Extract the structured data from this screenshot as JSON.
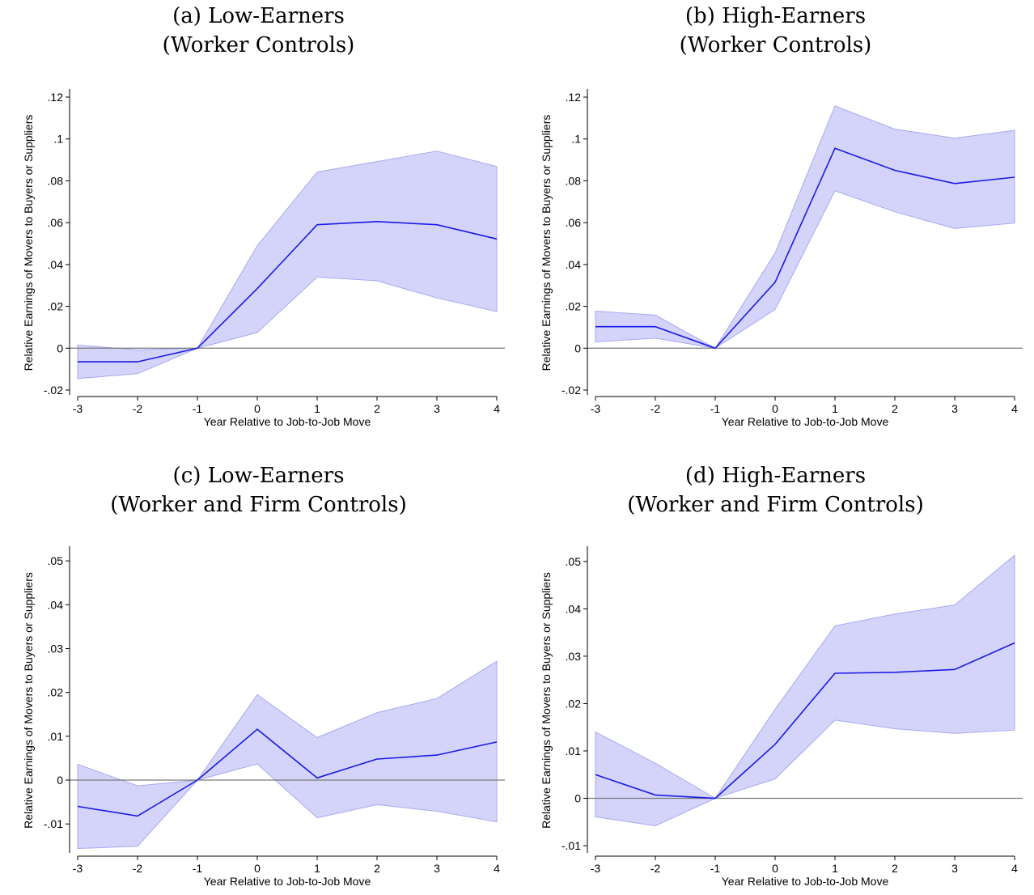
{
  "panels": [
    {
      "title_line1": "(a) Low-Earners",
      "title_line2": "(Worker Controls)"
    },
    {
      "title_line1": "(b) High-Earners",
      "title_line2": "(Worker Controls)"
    },
    {
      "title_line1": "(c) Low-Earners",
      "title_line2": "(Worker and Firm Controls)"
    },
    {
      "title_line1": "(d) High-Earners",
      "title_line2": "(Worker and Firm Controls)"
    }
  ],
  "colors": {
    "line": "#1a1ae6",
    "band": "#d4d4fb",
    "band_edge": "#a8a8f0",
    "zero_line": "#7a7a7a"
  },
  "chart_data": [
    {
      "type": "line",
      "title": "(a) Low-Earners (Worker Controls)",
      "xlabel": "Year Relative to Job-to-Job Move",
      "ylabel": "Relative Earnings of Movers to Buyers or Suppliers",
      "x": [
        -3,
        -2,
        -1,
        0,
        1,
        2,
        3,
        4
      ],
      "xlim": [
        -3,
        4
      ],
      "ylim": [
        -0.02,
        0.12
      ],
      "yticks": [
        -0.02,
        0,
        0.02,
        0.04,
        0.06,
        0.08,
        0.1,
        0.12
      ],
      "ytick_labels": [
        "-.02",
        "0",
        ".02",
        ".04",
        ".06",
        ".08",
        ".1",
        ".12"
      ],
      "series": [
        {
          "values": [
            -0.0065,
            -0.0065,
            0,
            0.0285,
            0.059,
            0.0605,
            0.059,
            0.0522
          ]
        }
      ],
      "ci_lower": [
        -0.0145,
        -0.0122,
        0,
        0.0075,
        0.034,
        0.0322,
        0.024,
        0.0175
      ],
      "ci_upper": [
        0.0015,
        -0.0008,
        0,
        0.049,
        0.0842,
        0.0892,
        0.0942,
        0.0868
      ]
    },
    {
      "type": "line",
      "title": "(b) High-Earners (Worker Controls)",
      "xlabel": "Year Relative to Job-to-Job Move",
      "ylabel": "Relative Earnings of Movers to Buyers or Suppliers",
      "x": [
        -3,
        -2,
        -1,
        0,
        1,
        2,
        3,
        4
      ],
      "xlim": [
        -3,
        4
      ],
      "ylim": [
        -0.02,
        0.12
      ],
      "yticks": [
        -0.02,
        0,
        0.02,
        0.04,
        0.06,
        0.08,
        0.1,
        0.12
      ],
      "ytick_labels": [
        "-.02",
        "0",
        ".02",
        ".04",
        ".06",
        ".08",
        ".1",
        ".12"
      ],
      "series": [
        {
          "values": [
            0.0103,
            0.0103,
            0,
            0.0315,
            0.0955,
            0.085,
            0.0787,
            0.0817
          ]
        }
      ],
      "ci_lower": [
        0.003,
        0.0048,
        0,
        0.0185,
        0.0752,
        0.0652,
        0.0572,
        0.0598
      ],
      "ci_upper": [
        0.0177,
        0.0158,
        0,
        0.0455,
        0.1158,
        0.1047,
        0.1004,
        0.1041
      ]
    },
    {
      "type": "line",
      "title": "(c) Low-Earners (Worker and Firm Controls)",
      "xlabel": "Year Relative to Job-to-Job Move",
      "ylabel": "Relative Earnings of Movers to Buyers or Suppliers",
      "x": [
        -3,
        -2,
        -1,
        0,
        1,
        2,
        3,
        4
      ],
      "xlim": [
        -3,
        4
      ],
      "ylim": [
        -0.0155,
        0.0515
      ],
      "yticks": [
        -0.01,
        0,
        0.01,
        0.02,
        0.03,
        0.04,
        0.05
      ],
      "ytick_labels": [
        "-.01",
        "0",
        ".01",
        ".02",
        ".03",
        ".04",
        ".05"
      ],
      "series": [
        {
          "values": [
            -0.006,
            -0.0082,
            0,
            0.0116,
            0.0005,
            0.0048,
            0.0057,
            0.0087
          ]
        }
      ],
      "ci_lower": [
        -0.0156,
        -0.0151,
        0,
        0.0037,
        -0.0086,
        -0.0056,
        -0.0071,
        -0.0095
      ],
      "ci_upper": [
        0.0036,
        -0.0013,
        0,
        0.0195,
        0.0097,
        0.0154,
        0.0186,
        0.0271
      ]
    },
    {
      "type": "line",
      "title": "(d) High-Earners (Worker and Firm Controls)",
      "xlabel": "Year Relative to Job-to-Job Move",
      "ylabel": "Relative Earnings of Movers to Buyers or Suppliers",
      "x": [
        -3,
        -2,
        -1,
        0,
        1,
        2,
        3,
        4
      ],
      "xlim": [
        -3,
        4
      ],
      "ylim": [
        -0.0105,
        0.0515
      ],
      "yticks": [
        -0.01,
        0,
        0.01,
        0.02,
        0.03,
        0.04,
        0.05
      ],
      "ytick_labels": [
        "-.01",
        "0",
        ".01",
        ".02",
        ".03",
        ".04",
        ".05"
      ],
      "series": [
        {
          "values": [
            0.005,
            0.0007,
            0,
            0.0114,
            0.0264,
            0.0266,
            0.0272,
            0.0328
          ]
        }
      ],
      "ci_lower": [
        -0.0039,
        -0.0058,
        0,
        0.0041,
        0.0165,
        0.0147,
        0.0137,
        0.0144
      ],
      "ci_upper": [
        0.014,
        0.0074,
        0,
        0.0188,
        0.0364,
        0.0389,
        0.0408,
        0.0513
      ]
    }
  ]
}
